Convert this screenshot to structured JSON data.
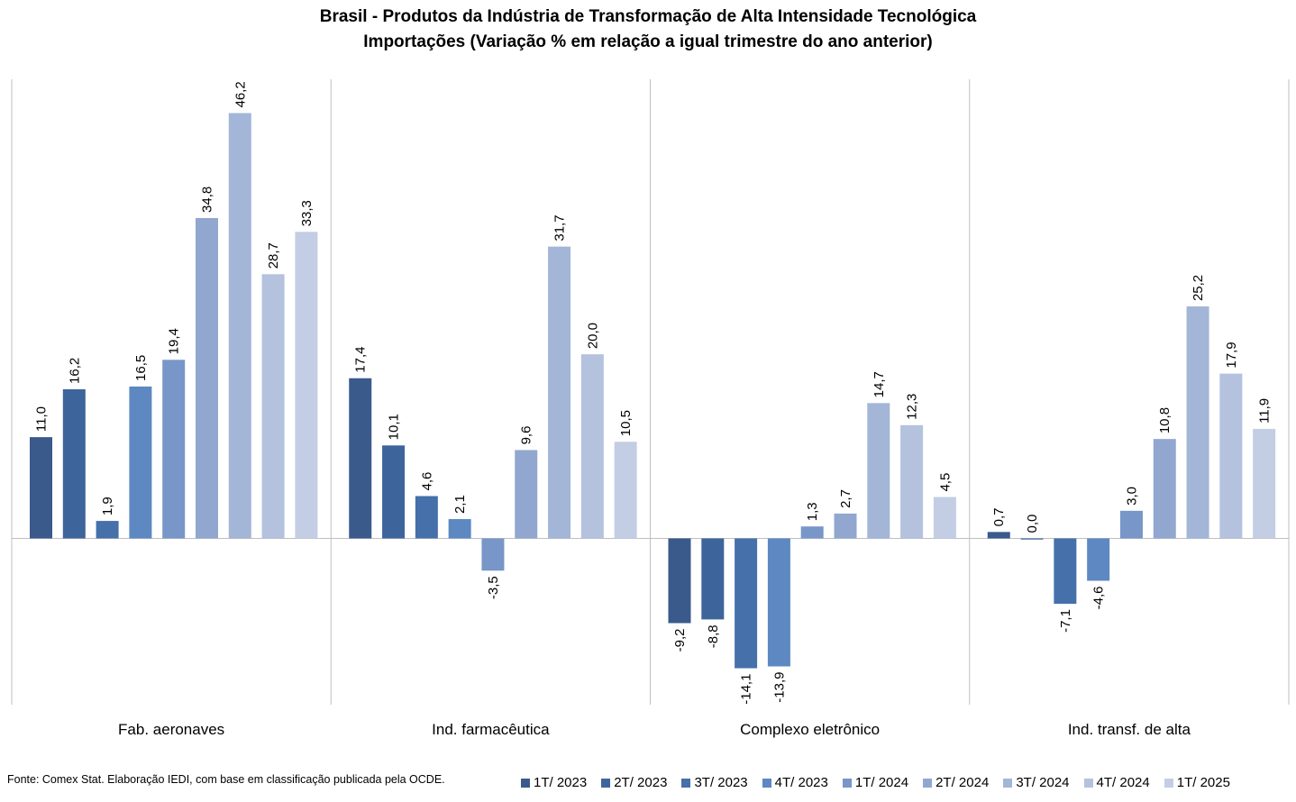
{
  "chart_data": {
    "type": "bar",
    "title": "Brasil - Produtos da Indústria de Transformação de Alta Intensidade Tecnológica",
    "subtitle": "Importações (Variação % em relação a igual trimestre do ano anterior)",
    "categories": [
      "Fab. aeronaves",
      "Ind. farmacêutica",
      "Complexo eletrônico",
      "Ind. transf. de alta"
    ],
    "series": [
      {
        "name": "1T/ 2023",
        "color": "#3A5A8C",
        "values": [
          11.0,
          17.4,
          -9.2,
          0.7
        ]
      },
      {
        "name": "2T/ 2023",
        "color": "#3E659B",
        "values": [
          16.2,
          10.1,
          -8.8,
          0.0
        ]
      },
      {
        "name": "3T/ 2023",
        "color": "#4570AA",
        "values": [
          1.9,
          4.6,
          -14.1,
          -7.1
        ]
      },
      {
        "name": "4T/ 2023",
        "color": "#5D88C2",
        "values": [
          16.5,
          2.1,
          -13.9,
          -4.6
        ]
      },
      {
        "name": "1T/ 2024",
        "color": "#7896C8",
        "values": [
          19.4,
          -3.5,
          1.3,
          3.0
        ]
      },
      {
        "name": "2T/ 2024",
        "color": "#91A7D0",
        "values": [
          34.8,
          9.6,
          2.7,
          10.8
        ]
      },
      {
        "name": "3T/ 2024",
        "color": "#A3B6D8",
        "values": [
          46.2,
          31.7,
          14.7,
          25.2
        ]
      },
      {
        "name": "4T/ 2024",
        "color": "#B4C2DE",
        "values": [
          28.7,
          20.0,
          12.3,
          17.9
        ]
      },
      {
        "name": "1T/ 2025",
        "color": "#C3CEE4",
        "values": [
          33.3,
          10.5,
          4.5,
          11.9
        ]
      }
    ],
    "value_labels": [
      [
        "11,0",
        "17,4",
        "-9,2",
        "0,7"
      ],
      [
        "16,2",
        "10,1",
        "-8,8",
        "0,0"
      ],
      [
        "1,9",
        "4,6",
        "-14,1",
        "-7,1"
      ],
      [
        "16,5",
        "2,1",
        "-13,9",
        "-4,6"
      ],
      [
        "19,4",
        "-3,5",
        "1,3",
        "3,0"
      ],
      [
        "34,8",
        "9,6",
        "2,7",
        "10,8"
      ],
      [
        "46,2",
        "31,7",
        "14,7",
        "25,2"
      ],
      [
        "28,7",
        "20,0",
        "12,3",
        "17,9"
      ],
      [
        "33,3",
        "10,5",
        "4,5",
        "11,9"
      ]
    ],
    "ylim": [
      -17,
      50
    ],
    "grid": false,
    "legend_position": "bottom"
  },
  "footer": {
    "source": "Fonte: Comex Stat. Elaboração IEDI, com base em classificação publicada pela OCDE."
  }
}
